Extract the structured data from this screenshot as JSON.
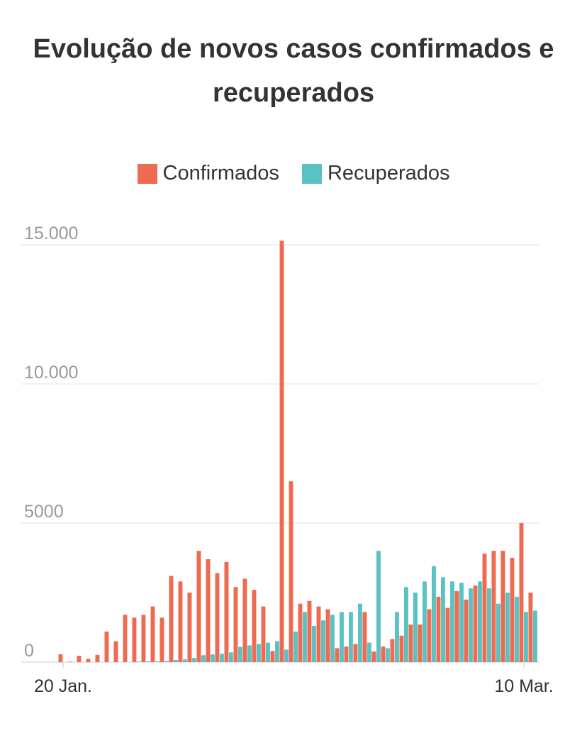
{
  "chart_data": {
    "type": "bar",
    "title": "Evolução de novos casos confirmados e recuperados",
    "legend": {
      "placement": "top-center"
    },
    "ylim": [
      0,
      15000
    ],
    "y_ticks": [
      {
        "value": 0,
        "label": "0"
      },
      {
        "value": 5000,
        "label": "5000"
      },
      {
        "value": 10000,
        "label": "10.000"
      },
      {
        "value": 15000,
        "label": "15.000"
      }
    ],
    "x_ticks": [
      {
        "index": 0,
        "label": "20 Jan."
      },
      {
        "index": 50,
        "label": "10 Mar."
      }
    ],
    "grid": true,
    "series": [
      {
        "name": "Confirmados",
        "color": "#ee6a50",
        "values": [
          280,
          20,
          230,
          120,
          260,
          1100,
          750,
          1700,
          1600,
          1700,
          2000,
          1600,
          3100,
          2900,
          2500,
          4000,
          3700,
          3200,
          3600,
          2700,
          3000,
          2600,
          2000,
          400,
          15150,
          6500,
          2100,
          2200,
          2000,
          1900,
          500,
          560,
          650,
          1800,
          380,
          560,
          830,
          950,
          1350,
          1350,
          1900,
          2350,
          1950,
          2550,
          2250,
          2750,
          3900,
          4000,
          4000,
          3750,
          5000,
          2500
        ]
      },
      {
        "name": "Recuperados",
        "color": "#5bc2c4",
        "values": [
          0,
          0,
          0,
          0,
          0,
          0,
          0,
          0,
          20,
          30,
          30,
          40,
          80,
          100,
          150,
          250,
          280,
          300,
          350,
          550,
          600,
          650,
          700,
          750,
          450,
          1100,
          1800,
          1300,
          1500,
          1700,
          1800,
          1800,
          2100,
          700,
          4000,
          500,
          1800,
          2700,
          2500,
          2900,
          3450,
          3050,
          2900,
          2850,
          2650,
          2900,
          2650,
          2100,
          2500,
          2350,
          1800,
          1850
        ]
      }
    ]
  }
}
